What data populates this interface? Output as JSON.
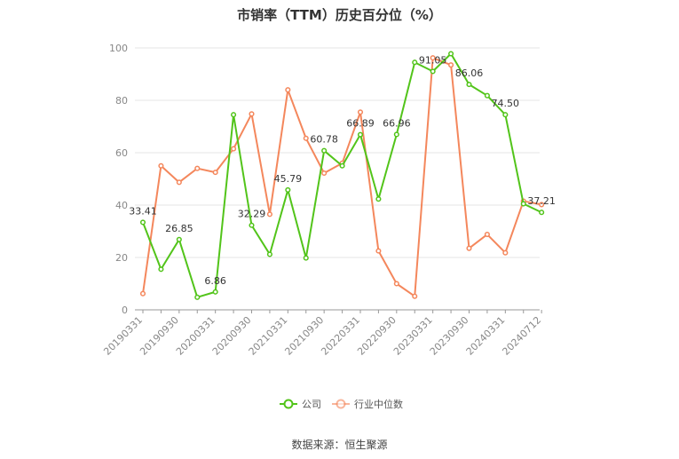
{
  "chart_data": {
    "type": "line",
    "title": "市销率（TTM）历史百分位（%）",
    "source": "数据来源：恒生聚源",
    "ylim": [
      0,
      100
    ],
    "yticks": [
      0,
      20,
      40,
      60,
      80,
      100
    ],
    "grid": true,
    "legend_position": "bottom",
    "x_tick_labels": [
      "20190331",
      "20190930",
      "20200331",
      "20200930",
      "20210331",
      "20210930",
      "20220331",
      "20220930",
      "20230331",
      "20230930",
      "20240331",
      "20240712"
    ],
    "x": [
      "20190331",
      "20190630",
      "20190930",
      "20191231",
      "20200331",
      "20200630",
      "20200930",
      "20201231",
      "20210331",
      "20210630",
      "20210930",
      "20211231",
      "20220331",
      "20220630",
      "20220930",
      "20221231",
      "20230331",
      "20230630",
      "20230930",
      "20231231",
      "20240331",
      "20240630",
      "20240712"
    ],
    "series": [
      {
        "name": "公司",
        "color": "#52c41a",
        "values": [
          33.41,
          15.5,
          26.85,
          4.8,
          6.86,
          74.5,
          32.29,
          21.2,
          45.79,
          19.8,
          60.78,
          55.0,
          66.89,
          42.3,
          66.96,
          94.5,
          91.05,
          97.8,
          86.06,
          81.8,
          74.5,
          40.5,
          37.21
        ],
        "labels": {
          "0": "33.41",
          "2": "26.85",
          "4": "6.86",
          "6": "32.29",
          "8": "45.79",
          "10": "60.78",
          "12": "66.89",
          "14": "66.96",
          "16": "91.05",
          "18": "86.06",
          "20": "74.50",
          "22": "37.21"
        }
      },
      {
        "name": "行业中位数",
        "color": "#f4875c",
        "values": [
          6.2,
          55.0,
          48.7,
          54.0,
          52.5,
          61.5,
          74.8,
          36.5,
          84.0,
          65.5,
          52.2,
          56.0,
          75.5,
          22.5,
          10.0,
          5.2,
          96.2,
          93.5,
          23.5,
          28.8,
          21.8,
          41.5,
          40.2
        ]
      }
    ]
  }
}
